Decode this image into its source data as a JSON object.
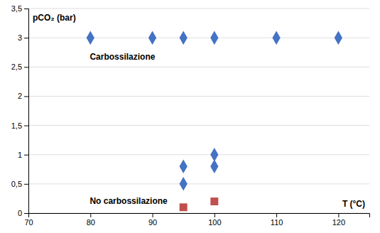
{
  "chart_data": {
    "type": "scatter",
    "x_label": "T (°C)",
    "y_label": "pCO₂ (bar)",
    "annotations": [
      "Carbossilazione",
      "No carbossilazione"
    ],
    "series": [
      {
        "color": "#4472C4",
        "marker": "diamond",
        "x": [
          80,
          90,
          95,
          100,
          110,
          120,
          95,
          95,
          100,
          100
        ],
        "values": [
          3,
          3,
          3,
          3,
          3,
          3,
          0.8,
          0.5,
          0.8,
          1.0
        ]
      },
      {
        "color": "#C0504D",
        "marker": "square",
        "x": [
          95,
          100
        ],
        "values": [
          0.1,
          0.2
        ]
      }
    ],
    "xlim": [
      70,
      125
    ],
    "ylim": [
      0,
      3.5
    ],
    "xticks": [
      70,
      80,
      90,
      100,
      110,
      120
    ],
    "yticks": [
      0,
      {
        "value": 0.5,
        "label": "0,5"
      },
      1,
      {
        "value": 1.5,
        "label": "1,5"
      },
      2,
      {
        "value": 2.5,
        "label": "2,5"
      },
      3,
      {
        "value": 3.5,
        "label": "3,5"
      }
    ],
    "grid": true
  }
}
